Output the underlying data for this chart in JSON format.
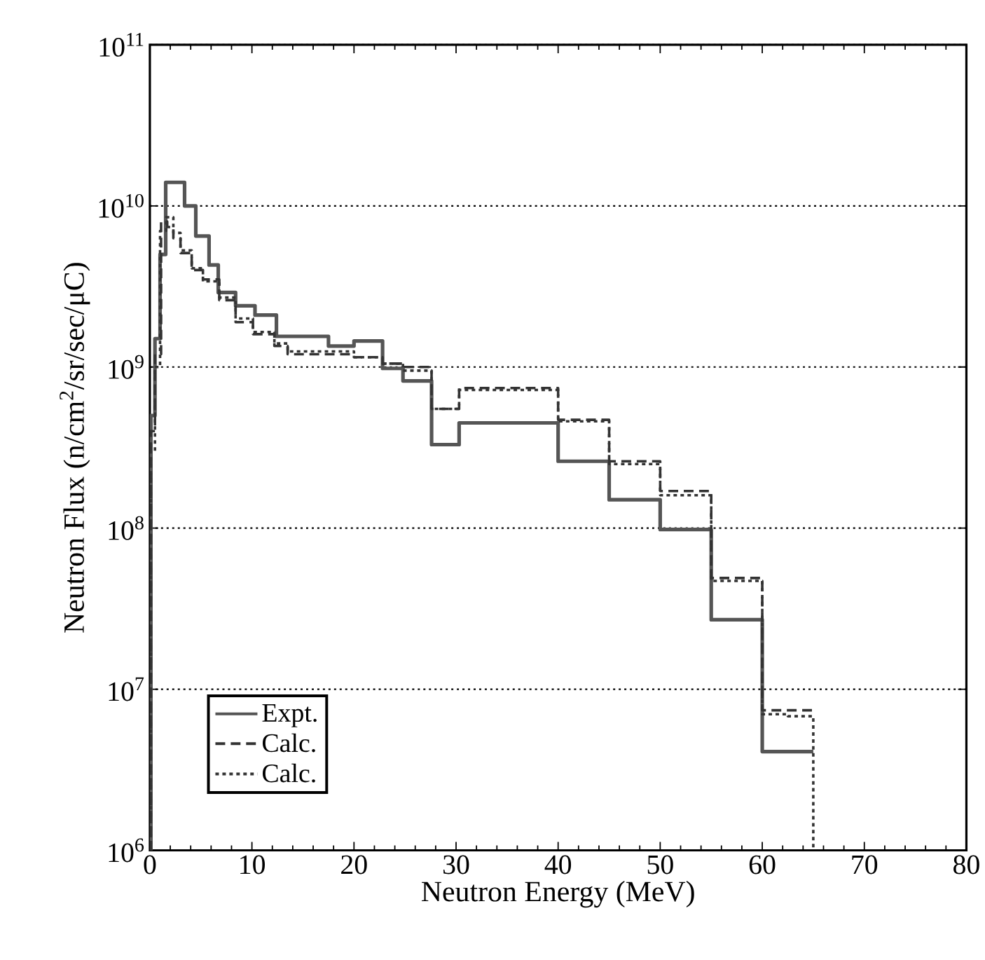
{
  "chart_data": {
    "type": "step",
    "xlabel": "Neutron Energy (MeV)",
    "ylabel": "Neutron Flux (n/cm$^{2}$/sr/sec/μC)",
    "log": "y",
    "grid": "y",
    "legend": "bottom left",
    "xlim": [
      0,
      80
    ],
    "xticks": [
      0,
      10,
      20,
      30,
      40,
      50,
      60,
      70,
      80
    ],
    "ylim": [
      1000000,
      100000000000
    ],
    "yticks": [
      {
        "value": 1000000,
        "label": "10$^{6}$"
      },
      {
        "value": 10000000,
        "label": "10$^{7}$"
      },
      {
        "value": 100000000,
        "label": "10$^{8}$"
      },
      {
        "value": 1000000000,
        "label": "10$^{9}$"
      },
      {
        "value": 10000000000,
        "label": "10$^{10}$"
      },
      {
        "value": 100000000000,
        "label": "10$^{11}$"
      }
    ],
    "series": [
      {
        "name": "Expt.",
        "color": "#555555",
        "line_style": "solid",
        "x": [
          0,
          0.1,
          0.5,
          1.0,
          1.55,
          3.4,
          4.5,
          5.8,
          6.7,
          8.4,
          10.3,
          12.4,
          17.5,
          20,
          22.8,
          24.8,
          27.6,
          30.3,
          40,
          45,
          50,
          55,
          60,
          65
        ],
        "values": [
          1000000,
          500000000,
          1500000000,
          5000000000,
          14000000000,
          10000000000,
          6500000000,
          4300000000,
          2900000000,
          2400000000,
          2100000000,
          1550000000,
          1350000000,
          1450000000,
          980000000,
          820000000,
          330000000,
          450000000,
          260000000,
          150000000,
          98000000,
          27000000,
          4100000,
          4100000
        ]
      },
      {
        "name": "Calc.",
        "color": "#333333",
        "line_style": "dashed",
        "x": [
          0,
          0.1,
          0.5,
          1.1,
          1.7,
          2.3,
          3.0,
          4.1,
          5.2,
          6.8,
          8.4,
          10.1,
          12.2,
          13.5,
          17,
          20,
          22.8,
          24.8,
          27.6,
          30.3,
          40,
          45,
          50,
          55,
          60,
          65
        ],
        "values": [
          1000000,
          400000000,
          1200000000,
          8000000000,
          7400000000,
          6300000000,
          5100000000,
          4000000000,
          3500000000,
          2600000000,
          1900000000,
          1600000000,
          1350000000,
          1200000000,
          1200000000,
          1150000000,
          1050000000,
          1000000000,
          550000000,
          740000000,
          470000000,
          260000000,
          170000000,
          49000000,
          7400000,
          7400000
        ]
      },
      {
        "name": "Calc.",
        "color": "#333333",
        "line_style": "dotted",
        "x": [
          0,
          0.1,
          0.5,
          1.0,
          1.6,
          2.3,
          3.0,
          4.1,
          5.2,
          6.8,
          8.4,
          10.1,
          12.2,
          13.5,
          17,
          20,
          22.8,
          24.8,
          27.6,
          30.3,
          40,
          45,
          50,
          55,
          60,
          62.5,
          65
        ],
        "values": [
          1000000,
          300000000,
          1000000000,
          7000000000,
          8500000000,
          6800000000,
          5300000000,
          4100000000,
          3400000000,
          2700000000,
          2000000000,
          1650000000,
          1400000000,
          1250000000,
          1250000000,
          1150000000,
          1050000000,
          950000000,
          550000000,
          720000000,
          460000000,
          250000000,
          160000000,
          47000000,
          7000000,
          6800000,
          1000000
        ]
      }
    ]
  }
}
